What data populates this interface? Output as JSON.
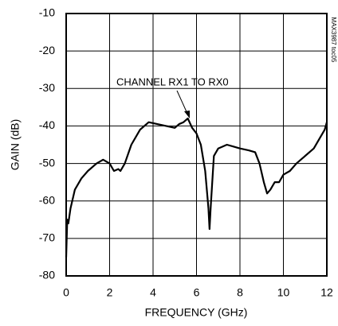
{
  "chart_data": {
    "type": "line",
    "xlabel": "FREQUENCY (GHz)",
    "ylabel": "GAIN (dB)",
    "annotation": "CHANNEL RX1 TO RX0",
    "side_note": "MAX3987 toc05",
    "x": [
      0,
      0.05,
      0.1,
      0.2,
      0.4,
      0.7,
      1.0,
      1.4,
      1.7,
      2.0,
      2.2,
      2.4,
      2.5,
      2.7,
      3.0,
      3.4,
      3.8,
      4.2,
      4.6,
      5.0,
      5.2,
      5.4,
      5.6,
      5.8,
      6.0,
      6.2,
      6.4,
      6.55,
      6.6,
      6.65,
      6.8,
      7.0,
      7.2,
      7.4,
      7.7,
      8.0,
      8.4,
      8.7,
      8.9,
      9.1,
      9.25,
      9.4,
      9.6,
      9.8,
      10.0,
      10.3,
      10.6,
      11.0,
      11.4,
      11.7,
      11.9,
      12.0
    ],
    "series": [
      {
        "name": "CHANNEL RX1 TO RX0",
        "color": "#000000",
        "values": [
          -75,
          -65,
          -66,
          -62,
          -57,
          -54,
          -52,
          -50,
          -49,
          -50,
          -52,
          -51.5,
          -52,
          -50,
          -45,
          -41,
          -39,
          -39.5,
          -40,
          -40.5,
          -39.5,
          -39,
          -38,
          -40.5,
          -42,
          -45,
          -52,
          -62,
          -67.5,
          -62,
          -48,
          -46,
          -45.5,
          -45,
          -45.5,
          -46,
          -46.5,
          -47,
          -50,
          -55,
          -58,
          -57,
          -55,
          -55,
          -53,
          -52,
          -50,
          -48,
          -46,
          -43,
          -41,
          -39
        ]
      }
    ],
    "xlim": [
      0,
      12
    ],
    "xticks": [
      0,
      2,
      4,
      6,
      8,
      10,
      12
    ],
    "ylim": [
      -80,
      -10
    ],
    "yticks": [
      -80,
      -70,
      -60,
      -50,
      -40,
      -30,
      -20,
      -10
    ],
    "grid": true
  }
}
